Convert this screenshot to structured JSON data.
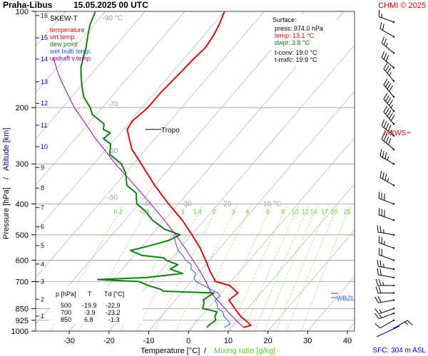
{
  "header": {
    "station": "Praha-Libus",
    "datetime": "15.05.2025 00 UTC",
    "copyright": "CHMI © 2025"
  },
  "chart_data": {
    "type": "line",
    "title": "SKEW-T",
    "xlabel_temperature": "Temperature [°C]",
    "xlabel_separator": "/",
    "xlabel_mixing": "Mixing ratio [g/kg]",
    "ylabel_pressure": "Pressure [hPa]",
    "ylabel_separator": "/",
    "ylabel_altitude": "Altitude [km]",
    "x_ticks": [
      -30,
      -20,
      -10,
      0,
      10,
      20,
      30,
      40
    ],
    "xlim": [
      -35,
      43
    ],
    "pressure_ticks": [
      100,
      200,
      300,
      400,
      500,
      600,
      700,
      850,
      925,
      1000
    ],
    "ylim": [
      100,
      1000
    ],
    "altitude_ticks": [
      {
        "km": "1",
        "p": 898
      },
      {
        "km": "2",
        "p": 795
      },
      {
        "km": "3",
        "p": 701
      },
      {
        "km": "4",
        "p": 617
      },
      {
        "km": "5",
        "p": 540
      },
      {
        "km": "6",
        "p": 472
      },
      {
        "km": "7",
        "p": 411
      },
      {
        "km": "8",
        "p": 357
      },
      {
        "km": "9",
        "p": 308
      },
      {
        "km": "10",
        "p": 265
      },
      {
        "km": "11",
        "p": 227
      },
      {
        "km": "12",
        "p": 194
      },
      {
        "km": "13",
        "p": 166
      },
      {
        "km": "14",
        "p": 141
      },
      {
        "km": "15",
        "p": 121
      },
      {
        "km": "16",
        "p": 103
      }
    ],
    "isotherm_labels": [
      {
        "text": "-90 °C",
        "T": -90
      },
      {
        "text": "-70",
        "T": -70
      },
      {
        "text": "-60",
        "T": -60
      },
      {
        "text": "-50",
        "T": -50
      },
      {
        "text": "-40",
        "T": -40
      },
      {
        "text": "-30",
        "T": -30
      },
      {
        "text": "-20",
        "T": -20
      },
      {
        "text": "-10 °C",
        "T": -10
      }
    ],
    "mixing_ratio_labels": [
      "0.2",
      "0.4",
      "1",
      "1.4",
      "2",
      "3",
      "4",
      "6",
      "8",
      "10",
      "12",
      "14",
      "17",
      "20",
      "25"
    ],
    "mixing_ratio_values": [
      0.2,
      0.4,
      1,
      1.4,
      2,
      3,
      4,
      6,
      8,
      10,
      12,
      14,
      17,
      20,
      25
    ],
    "legend": [
      {
        "text": "temperature",
        "color": "#d01010"
      },
      {
        "text": "virt.temp.",
        "color": "#d01010"
      },
      {
        "text": "dew point",
        "color": "#108010"
      },
      {
        "text": "wet bulb temp.",
        "color": "#2060d0"
      },
      {
        "text": "updraft v.temp.",
        "color": "#a000a0"
      }
    ],
    "surface": {
      "title": "Surface:",
      "press": "press: 974.0 hPa",
      "temp": "temp: 13.1 °C",
      "dwpt": "dwpt: 3.8 °C",
      "tconv": "t-conv: 19.0 °C",
      "tmxfc": "t-mxfc: 19.9 °C"
    },
    "levels_table": {
      "headers": [
        "p [hPa]",
        "T",
        "Td [°C]"
      ],
      "rows": [
        [
          "500",
          "-19.9",
          "-22.9"
        ],
        [
          "700",
          "-3.9",
          "-23.2"
        ],
        [
          "850",
          "6.8",
          "-1.3"
        ]
      ]
    },
    "annotations": {
      "tropo": "Tropo",
      "mxws": "MXWS",
      "wbzl": "WBZL",
      "sfc": "SFC: 304 m ASL"
    },
    "tropo_p": 234,
    "series": [
      {
        "name": "temperature",
        "color": "#d01010",
        "p": [
          974,
          960,
          925,
          900,
          850,
          800,
          760,
          720,
          700,
          650,
          600,
          550,
          500,
          450,
          400,
          350,
          300,
          270,
          250,
          234,
          220,
          200,
          180,
          160,
          140,
          130,
          120,
          110,
          100
        ],
        "T": [
          13.1,
          14.5,
          12.0,
          10.0,
          6.8,
          3.5,
          4.2,
          0.5,
          -3.9,
          -7.5,
          -11.0,
          -15.0,
          -19.9,
          -25.5,
          -32.5,
          -40.0,
          -48.0,
          -53.5,
          -56.5,
          -59.0,
          -59.5,
          -58.5,
          -58.5,
          -58.0,
          -57.5,
          -57.0,
          -57.5,
          -58.5,
          -60.0
        ]
      },
      {
        "name": "dew point",
        "color": "#108010",
        "p": [
          974,
          950,
          925,
          900,
          870,
          850,
          820,
          800,
          780,
          760,
          750,
          740,
          720,
          700,
          690,
          680,
          660,
          640,
          620,
          600,
          590,
          580,
          560,
          540,
          520,
          500,
          480,
          450,
          420,
          400,
          370,
          350,
          320,
          300,
          280,
          260,
          250,
          240,
          234,
          225,
          210,
          200,
          185,
          170,
          160,
          150,
          140,
          130,
          120,
          110,
          100
        ],
        "T": [
          3.8,
          4.0,
          4.5,
          3.5,
          3.0,
          -1.3,
          -2.0,
          -3.0,
          -2.5,
          -1.8,
          -15.0,
          -16.0,
          -20.0,
          -23.2,
          -34.0,
          -22.0,
          -14.0,
          -18.0,
          -17.0,
          -21.0,
          -22.0,
          -28.0,
          -32.0,
          -28.0,
          -24.5,
          -22.9,
          -28.0,
          -33.0,
          -37.0,
          -40.5,
          -43.0,
          -47.0,
          -50.0,
          -53.0,
          -58.0,
          -60.0,
          -63.0,
          -62.5,
          -65.0,
          -66.0,
          -71.0,
          -73.0,
          -77.0,
          -80.0,
          -82.0,
          -84.0,
          -85.5,
          -87.0,
          -89.0,
          -91.0,
          -92.5
        ]
      },
      {
        "name": "wet bulb temp.",
        "color": "#2060d0",
        "p": [
          974,
          950,
          925,
          900,
          870,
          850,
          820,
          800,
          780,
          760,
          740,
          720,
          700,
          680,
          660,
          640,
          620,
          600,
          580,
          560,
          540,
          520,
          500
        ],
        "T": [
          8.2,
          9.0,
          7.5,
          5.8,
          4.5,
          2.5,
          1.2,
          0.0,
          0.5,
          -0.8,
          -3.5,
          -6.0,
          -8.8,
          -10.2,
          -10.6,
          -12.8,
          -13.6,
          -16.0,
          -17.8,
          -20.0,
          -21.5,
          -23.0,
          -24.5
        ]
      },
      {
        "name": "updraft v.temp.",
        "color": "#a000a0",
        "p": [
          974,
          925,
          850,
          800,
          760,
          700,
          650,
          600,
          550,
          500,
          450,
          400,
          350,
          300,
          270,
          250,
          234,
          200,
          180,
          160,
          140
        ],
        "T": [
          13.1,
          9.6,
          4.3,
          0.6,
          -2.5,
          -6.3,
          -10.0,
          -14.2,
          -18.8,
          -24.0,
          -30.0,
          -37.0,
          -45.0,
          -54.5,
          -60.5,
          -65.0,
          -68.5,
          -77.0,
          -82.0,
          -87.5,
          -93.0
        ]
      }
    ],
    "wind_barbs": [
      {
        "p": 980,
        "dir": 60,
        "kt": 15
      },
      {
        "p": 925,
        "dir": 240,
        "kt": 10
      },
      {
        "p": 880,
        "dir": 250,
        "kt": 15
      },
      {
        "p": 850,
        "dir": 250,
        "kt": 15
      },
      {
        "p": 800,
        "dir": 260,
        "kt": 20
      },
      {
        "p": 760,
        "dir": 270,
        "kt": 20
      },
      {
        "p": 720,
        "dir": 270,
        "kt": 25
      },
      {
        "p": 680,
        "dir": 280,
        "kt": 20
      },
      {
        "p": 640,
        "dir": 280,
        "kt": 25
      },
      {
        "p": 600,
        "dir": 290,
        "kt": 20
      },
      {
        "p": 550,
        "dir": 290,
        "kt": 25
      },
      {
        "p": 500,
        "dir": 280,
        "kt": 25
      },
      {
        "p": 450,
        "dir": 290,
        "kt": 30
      },
      {
        "p": 400,
        "dir": 290,
        "kt": 30
      },
      {
        "p": 350,
        "dir": 300,
        "kt": 35
      },
      {
        "p": 300,
        "dir": 300,
        "kt": 35
      },
      {
        "p": 270,
        "dir": 310,
        "kt": 40
      },
      {
        "p": 245,
        "dir": 310,
        "kt": 45
      },
      {
        "p": 225,
        "dir": 320,
        "kt": 50
      },
      {
        "p": 205,
        "dir": 320,
        "kt": 45
      },
      {
        "p": 185,
        "dir": 320,
        "kt": 40
      },
      {
        "p": 165,
        "dir": 320,
        "kt": 35
      },
      {
        "p": 150,
        "dir": 310,
        "kt": 30
      },
      {
        "p": 135,
        "dir": 310,
        "kt": 25
      },
      {
        "p": 120,
        "dir": 300,
        "kt": 20
      },
      {
        "p": 108,
        "dir": 290,
        "kt": 15
      }
    ],
    "colors": {
      "temperature": "#d01010",
      "dewpoint": "#108010",
      "wetbulb": "#2060d0",
      "updraft": "#a000a0",
      "isobar": "#888888",
      "isotherm": "#b0b0b0",
      "mixing_ratio": "#99dd66",
      "mixing_label": "#66cc33",
      "copyright": "#cc0000",
      "ylabel": "#000080",
      "sfc_label": "#0000cc"
    }
  }
}
